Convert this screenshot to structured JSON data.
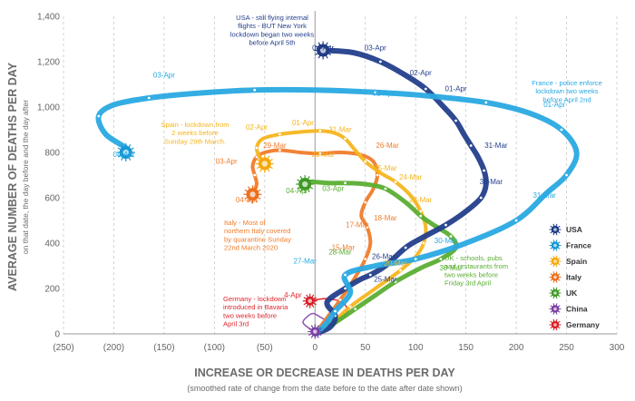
{
  "chart_data": {
    "type": "line",
    "xlabel": "INCREASE OR DECREASE IN DEATHS PER DAY",
    "xlabel_sub": "(smoothed rate of change from the date before to the date after date shown)",
    "ylabel": "AVERAGE NUMBER OF DEATHS PER DAY",
    "ylabel_sub": "on that date, the day before and the day after",
    "xlim": [
      -250,
      300
    ],
    "ylim": [
      0,
      1400
    ],
    "x_ticks": [
      -250,
      -200,
      -150,
      -100,
      -50,
      0,
      50,
      100,
      150,
      200,
      250,
      300
    ],
    "x_tick_labels": [
      "(250)",
      "(200)",
      "(150)",
      "(100)",
      "(50)",
      "0",
      "50",
      "100",
      "150",
      "200",
      "250",
      "300"
    ],
    "y_ticks": [
      0,
      200,
      400,
      600,
      800,
      1000,
      1200,
      1400
    ],
    "y_tick_labels": [
      "0",
      "200",
      "400",
      "600",
      "800",
      "1,000",
      "1,200",
      "1,400"
    ],
    "grid": "vertical dashed",
    "legend_position": "bottom-right",
    "series": [
      {
        "name": "USA",
        "color": "#233f8c",
        "marker_color": "#1f3b87",
        "points": [
          [
            0,
            0
          ],
          [
            15,
            30
          ],
          [
            20,
            80
          ],
          [
            12,
            140
          ],
          [
            30,
            200
          ],
          [
            45,
            240
          ],
          [
            55,
            260
          ],
          [
            70,
            300
          ],
          [
            90,
            380
          ],
          [
            105,
            420
          ],
          [
            130,
            480
          ],
          [
            150,
            540
          ],
          [
            165,
            600
          ],
          [
            170,
            660
          ],
          [
            168,
            720
          ],
          [
            162,
            780
          ],
          [
            155,
            830
          ],
          [
            148,
            880
          ],
          [
            140,
            940
          ],
          [
            128,
            1000
          ],
          [
            110,
            1080
          ],
          [
            90,
            1140
          ],
          [
            65,
            1200
          ],
          [
            38,
            1240
          ],
          [
            8,
            1250
          ]
        ],
        "labels": [
          {
            "text": "04-Apr",
            "x": 8,
            "y": 1250
          },
          {
            "text": "03-Apr",
            "x": 60,
            "y": 1250
          },
          {
            "text": "02-Apr",
            "x": 105,
            "y": 1140
          },
          {
            "text": "01-Apr",
            "x": 140,
            "y": 1070
          },
          {
            "text": "31-Mar",
            "x": 180,
            "y": 820
          },
          {
            "text": "30-Mar",
            "x": 175,
            "y": 660
          },
          {
            "text": "26-Mar",
            "x": 68,
            "y": 330
          },
          {
            "text": "25-Mar",
            "x": 70,
            "y": 230
          }
        ]
      },
      {
        "name": "France",
        "color": "#29a9e1",
        "marker_color": "#1598d6",
        "points": [
          [
            0,
            0
          ],
          [
            10,
            40
          ],
          [
            20,
            100
          ],
          [
            35,
            180
          ],
          [
            30,
            260
          ],
          [
            60,
            300
          ],
          [
            100,
            330
          ],
          [
            150,
            400
          ],
          [
            200,
            500
          ],
          [
            230,
            620
          ],
          [
            250,
            700
          ],
          [
            260,
            800
          ],
          [
            245,
            900
          ],
          [
            215,
            970
          ],
          [
            170,
            1020
          ],
          [
            110,
            1050
          ],
          [
            60,
            1065
          ],
          [
            0,
            1075
          ],
          [
            -60,
            1075
          ],
          [
            -120,
            1060
          ],
          [
            -165,
            1040
          ],
          [
            -200,
            1010
          ],
          [
            -215,
            960
          ],
          [
            -208,
            880
          ],
          [
            -188,
            820
          ],
          [
            -188,
            800
          ]
        ],
        "labels": [
          {
            "text": "04-Apr",
            "x": -190,
            "y": 780
          },
          {
            "text": "03-Apr",
            "x": -150,
            "y": 1130
          },
          {
            "text": "02-Apr",
            "x": 68,
            "y": 1050
          },
          {
            "text": "01-Apr",
            "x": 238,
            "y": 1000
          },
          {
            "text": "31-Mar",
            "x": 228,
            "y": 600
          },
          {
            "text": "30-Mar",
            "x": 130,
            "y": 400
          },
          {
            "text": "27-Mar",
            "x": -10,
            "y": 310
          }
        ]
      },
      {
        "name": "Spain",
        "color": "#f6b51e",
        "marker_color": "#f4a90e",
        "points": [
          [
            0,
            0
          ],
          [
            15,
            40
          ],
          [
            35,
            120
          ],
          [
            60,
            200
          ],
          [
            85,
            280
          ],
          [
            100,
            340
          ],
          [
            108,
            400
          ],
          [
            110,
            470
          ],
          [
            105,
            540
          ],
          [
            95,
            610
          ],
          [
            80,
            670
          ],
          [
            65,
            710
          ],
          [
            50,
            760
          ],
          [
            38,
            820
          ],
          [
            30,
            860
          ],
          [
            20,
            885
          ],
          [
            5,
            895
          ],
          [
            -15,
            890
          ],
          [
            -35,
            880
          ],
          [
            -52,
            860
          ],
          [
            -58,
            820
          ],
          [
            -55,
            780
          ],
          [
            -50,
            750
          ]
        ],
        "labels": [
          {
            "text": "01-Apr",
            "x": -12,
            "y": 920
          },
          {
            "text": "31-Mar",
            "x": 25,
            "y": 890
          },
          {
            "text": "02-Apr",
            "x": -58,
            "y": 900
          },
          {
            "text": "29-Mar",
            "x": 8,
            "y": 780
          },
          {
            "text": "25-Mar",
            "x": 70,
            "y": 720
          },
          {
            "text": "24-Mar",
            "x": 95,
            "y": 680
          },
          {
            "text": "23-Mar",
            "x": 105,
            "y": 580
          },
          {
            "text": "20-Mar",
            "x": 80,
            "y": 300
          }
        ]
      },
      {
        "name": "Italy",
        "color": "#f07c2b",
        "marker_color": "#ec6f1e",
        "points": [
          [
            0,
            0
          ],
          [
            10,
            60
          ],
          [
            25,
            150
          ],
          [
            40,
            250
          ],
          [
            50,
            330
          ],
          [
            55,
            400
          ],
          [
            52,
            470
          ],
          [
            46,
            520
          ],
          [
            50,
            580
          ],
          [
            58,
            640
          ],
          [
            62,
            700
          ],
          [
            58,
            760
          ],
          [
            45,
            790
          ],
          [
            25,
            800
          ],
          [
            5,
            795
          ],
          [
            -15,
            800
          ],
          [
            -35,
            810
          ],
          [
            -50,
            800
          ],
          [
            -58,
            780
          ],
          [
            -62,
            740
          ],
          [
            -60,
            700
          ],
          [
            -58,
            660
          ],
          [
            -62,
            615
          ]
        ],
        "labels": [
          {
            "text": "04-Apr",
            "x": -68,
            "y": 580
          },
          {
            "text": "03-Apr",
            "x": -88,
            "y": 750
          },
          {
            "text": "29-Mar",
            "x": -40,
            "y": 820
          },
          {
            "text": "26-Mar",
            "x": 72,
            "y": 820
          },
          {
            "text": "18-Mar",
            "x": 70,
            "y": 500
          },
          {
            "text": "17-Mar",
            "x": 42,
            "y": 470
          },
          {
            "text": "15-Mar",
            "x": 28,
            "y": 370
          }
        ]
      },
      {
        "name": "UK",
        "color": "#5aae32",
        "marker_color": "#3e9a26",
        "points": [
          [
            0,
            0
          ],
          [
            20,
            50
          ],
          [
            40,
            110
          ],
          [
            60,
            170
          ],
          [
            80,
            230
          ],
          [
            105,
            290
          ],
          [
            125,
            330
          ],
          [
            140,
            380
          ],
          [
            135,
            430
          ],
          [
            118,
            480
          ],
          [
            105,
            520
          ],
          [
            90,
            580
          ],
          [
            70,
            640
          ],
          [
            50,
            660
          ],
          [
            30,
            665
          ],
          [
            15,
            665
          ],
          [
            -5,
            670
          ],
          [
            -10,
            660
          ]
        ],
        "labels": [
          {
            "text": "04-Apr",
            "x": -18,
            "y": 620
          },
          {
            "text": "03-Apr",
            "x": 18,
            "y": 630
          },
          {
            "text": "28-Mar",
            "x": 25,
            "y": 350
          },
          {
            "text": "30-Mar",
            "x": 135,
            "y": 280
          }
        ]
      },
      {
        "name": "China",
        "color": "#8b4fb0",
        "marker_color": "#7b3fa3",
        "points": [
          [
            0,
            0
          ],
          [
            8,
            15
          ],
          [
            15,
            35
          ],
          [
            12,
            55
          ],
          [
            5,
            75
          ],
          [
            -2,
            90
          ],
          [
            -8,
            75
          ],
          [
            -12,
            50
          ],
          [
            -6,
            25
          ],
          [
            0,
            10
          ]
        ],
        "labels": []
      },
      {
        "name": "Germany",
        "color": "#e0262e",
        "marker_color": "#d81f27",
        "points": [
          [
            0,
            0
          ],
          [
            10,
            20
          ],
          [
            22,
            50
          ],
          [
            30,
            80
          ],
          [
            32,
            110
          ],
          [
            28,
            135
          ],
          [
            20,
            150
          ],
          [
            8,
            155
          ],
          [
            -5,
            145
          ]
        ],
        "labels": [
          {
            "text": "4-Apr",
            "x": -22,
            "y": 160
          }
        ]
      }
    ],
    "annotations": [
      {
        "series": "USA",
        "lines": [
          "USA - still flying internal",
          "flights - BUT New York",
          "lockdown began two weeks",
          "before April 5th"
        ]
      },
      {
        "series": "France",
        "lines": [
          "France - police enforce",
          "lockdown two weeks",
          "before April 2nd"
        ]
      },
      {
        "series": "Spain",
        "lines": [
          "Spain - lockdown from",
          "2 weeks before",
          "Sunday 29th March."
        ]
      },
      {
        "series": "Italy",
        "lines": [
          "Italy - Most of",
          "northern Italy covered",
          "by quarantine Sunday",
          "22nd March 2020"
        ]
      },
      {
        "series": "UK",
        "lines": [
          "UK - schools, pubs",
          "and restaurants from",
          "two weeks before",
          "Friday 3rd April"
        ]
      },
      {
        "series": "Germany",
        "lines": [
          "Germany - lockdown",
          "introduced in Bavaria",
          "two weeks before",
          "April 3rd"
        ]
      }
    ],
    "legend": [
      "USA",
      "France",
      "Spain",
      "Italy",
      "UK",
      "China",
      "Germany"
    ]
  }
}
